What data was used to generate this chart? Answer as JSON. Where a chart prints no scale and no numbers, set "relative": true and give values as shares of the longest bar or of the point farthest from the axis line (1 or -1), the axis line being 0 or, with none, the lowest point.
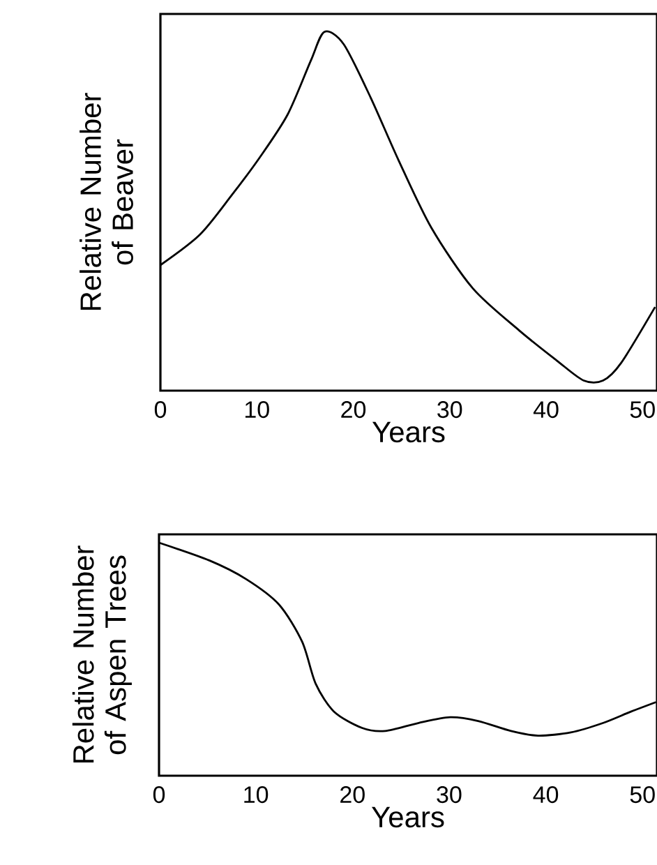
{
  "chart_data": [
    {
      "type": "line",
      "relative": true,
      "xlabel": "Years",
      "ylabel": "Relative Number of Beaver",
      "xlim": [
        0,
        51.5
      ],
      "xticks": [
        0,
        10,
        20,
        30,
        40,
        50
      ],
      "tick_labels": "x",
      "series": [
        {
          "color": "#000000",
          "x": [
            0,
            4.1,
            7.4,
            10.3,
            13.2,
            15.6,
            17.0,
            19.0,
            21.8,
            24.7,
            28.1,
            32.4,
            37.2,
            41.1,
            43.9,
            45.9,
            47.8,
            51.3
          ],
          "values": [
            0.35,
            0.435,
            0.545,
            0.65,
            0.77,
            0.92,
            1.0,
            0.966,
            0.817,
            0.642,
            0.454,
            0.285,
            0.168,
            0.084,
            0.028,
            0.028,
            0.078,
            0.233
          ]
        }
      ]
    },
    {
      "type": "line",
      "relative": true,
      "xlabel": "Years",
      "ylabel": "Relative Number of Aspen Trees",
      "xlim": [
        0,
        51.5
      ],
      "xticks": [
        0,
        10,
        20,
        30,
        40,
        50
      ],
      "tick_labels": "x",
      "series": [
        {
          "color": "#000000",
          "x": [
            0,
            5.2,
            9.0,
            12.4,
            14.8,
            16.2,
            18.1,
            21.0,
            23.4,
            26.8,
            30.1,
            33.0,
            36.4,
            39.2,
            42.6,
            45.9,
            48.8,
            51.4
          ],
          "values": [
            1.0,
            0.924,
            0.844,
            0.735,
            0.575,
            0.395,
            0.275,
            0.205,
            0.192,
            0.226,
            0.251,
            0.235,
            0.192,
            0.172,
            0.186,
            0.226,
            0.275,
            0.316
          ]
        }
      ]
    }
  ]
}
